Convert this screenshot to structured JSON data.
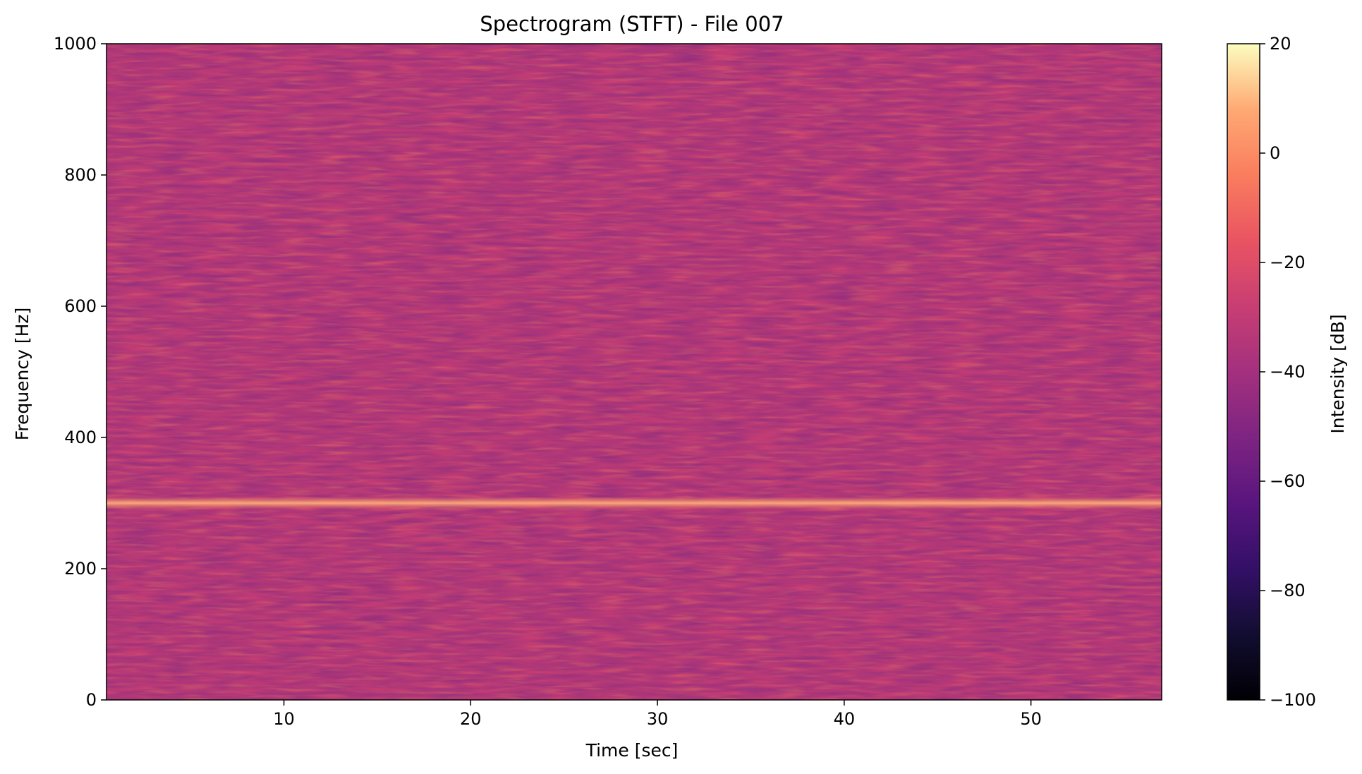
{
  "chart_data": {
    "type": "heatmap",
    "title": "Spectrogram (STFT) - File 007",
    "xlabel": "Time [sec]",
    "ylabel": "Frequency [Hz]",
    "xlim": [
      0.5,
      57
    ],
    "ylim": [
      0,
      1000
    ],
    "xticks": [
      10,
      20,
      30,
      40,
      50
    ],
    "yticks": [
      0,
      200,
      400,
      600,
      800,
      1000
    ],
    "colormap": "magma",
    "colorbar": {
      "label": "Intensity [dB]",
      "range": [
        -100,
        20
      ],
      "ticks": [
        20,
        0,
        -20,
        -40,
        -60,
        -80,
        -100
      ],
      "tick_labels": [
        "20",
        "0",
        "−20",
        "−40",
        "−60",
        "−80",
        "−100"
      ]
    },
    "background_level_db": -28,
    "tone": {
      "frequency_hz": 300,
      "level_db": -5,
      "t_start": 0.5,
      "t_end": 57
    },
    "grid": false
  }
}
